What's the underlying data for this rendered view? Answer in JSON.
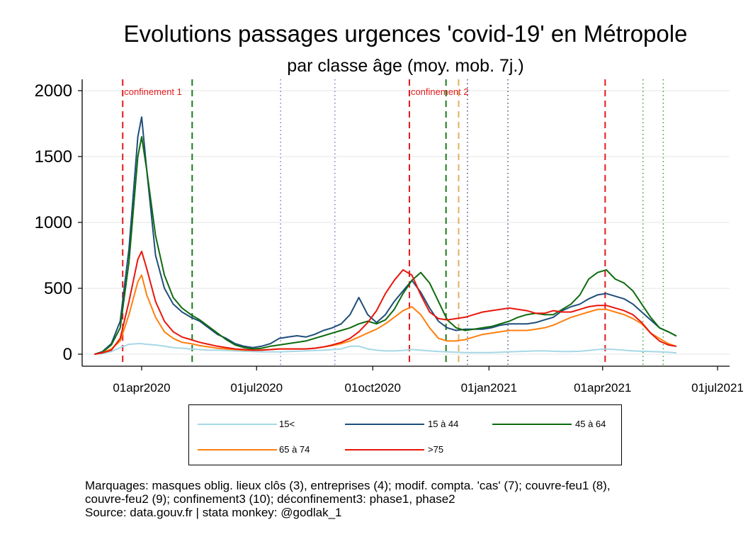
{
  "title": "Evolutions passages urgences 'covid-19' en Métropole",
  "subtitle": "par classe âge (moy. mob. 7j.)",
  "notes": [
    "Marquages: masques oblig. lieux clôs (3), entreprises (4); modif. compta. 'cas' (7); couvre-feu1 (8),",
    "couvre-feu2 (9); confinement3 (10); déconfinement3: phase1, phase2",
    "Source: data.gouv.fr | stata monkey: @godlak_1"
  ],
  "chart_data": {
    "type": "line",
    "title": "Evolutions passages urgences 'covid-19' en Métropole",
    "subtitle": "par classe âge (moy. mob. 7j.)",
    "xlabel": "",
    "ylabel": "",
    "xlim": [
      "2020-02-24",
      "2021-07-01"
    ],
    "ylim": [
      0,
      2000
    ],
    "y_ticks": [
      0,
      500,
      1000,
      1500,
      2000
    ],
    "x_ticks": [
      {
        "date": "2020-04-01",
        "label": "01apr2020"
      },
      {
        "date": "2020-07-01",
        "label": "01jul2020"
      },
      {
        "date": "2020-10-01",
        "label": "01oct2020"
      },
      {
        "date": "2021-01-01",
        "label": "01jan2021"
      },
      {
        "date": "2021-04-01",
        "label": "01apr2021"
      },
      {
        "date": "2021-07-01",
        "label": "01jul2021"
      }
    ],
    "grid": "horizontal",
    "legend_position": "bottom",
    "vlines": [
      {
        "date": "2020-03-17",
        "color": "#e31a1c",
        "style": "dashed",
        "label": "confinement 1"
      },
      {
        "date": "2020-05-11",
        "color": "#1a7a1a",
        "style": "dashed",
        "label": ""
      },
      {
        "date": "2020-07-20",
        "color": "#7070b8",
        "style": "dotted",
        "label": ""
      },
      {
        "date": "2020-09-01",
        "color": "#7070d0",
        "style": "dotted",
        "label": ""
      },
      {
        "date": "2020-10-30",
        "color": "#e31a1c",
        "style": "dashed",
        "label": "confinement 2"
      },
      {
        "date": "2020-11-28",
        "color": "#1a7a1a",
        "style": "dashed",
        "label": ""
      },
      {
        "date": "2020-12-08",
        "color": "#e0b060",
        "style": "dashed",
        "label": ""
      },
      {
        "date": "2020-12-15",
        "color": "#404070",
        "style": "dotted",
        "label": ""
      },
      {
        "date": "2021-01-16",
        "color": "#404070",
        "style": "dotted",
        "label": ""
      },
      {
        "date": "2021-04-03",
        "color": "#e31a1c",
        "style": "dashed",
        "label": ""
      },
      {
        "date": "2021-05-03",
        "color": "#2a9a2a",
        "style": "dotted",
        "label": ""
      },
      {
        "date": "2021-05-19",
        "color": "#2a9a2a",
        "style": "dotted",
        "label": ""
      }
    ],
    "x": [
      "2020-02-24",
      "2020-03-01",
      "2020-03-08",
      "2020-03-15",
      "2020-03-22",
      "2020-03-29",
      "2020-04-01",
      "2020-04-05",
      "2020-04-12",
      "2020-04-19",
      "2020-04-26",
      "2020-05-03",
      "2020-05-10",
      "2020-05-17",
      "2020-05-24",
      "2020-05-31",
      "2020-06-07",
      "2020-06-14",
      "2020-06-21",
      "2020-06-28",
      "2020-07-05",
      "2020-07-12",
      "2020-07-19",
      "2020-07-26",
      "2020-08-02",
      "2020-08-09",
      "2020-08-16",
      "2020-08-23",
      "2020-08-30",
      "2020-09-06",
      "2020-09-13",
      "2020-09-20",
      "2020-09-27",
      "2020-10-04",
      "2020-10-11",
      "2020-10-18",
      "2020-10-25",
      "2020-11-01",
      "2020-11-08",
      "2020-11-15",
      "2020-11-22",
      "2020-11-29",
      "2020-12-06",
      "2020-12-13",
      "2020-12-20",
      "2020-12-27",
      "2021-01-03",
      "2021-01-10",
      "2021-01-17",
      "2021-01-24",
      "2021-01-31",
      "2021-02-07",
      "2021-02-14",
      "2021-02-21",
      "2021-02-28",
      "2021-03-07",
      "2021-03-14",
      "2021-03-21",
      "2021-03-28",
      "2021-04-04",
      "2021-04-11",
      "2021-04-18",
      "2021-04-25",
      "2021-05-02",
      "2021-05-09",
      "2021-05-16",
      "2021-05-23",
      "2021-05-29"
    ],
    "series": [
      {
        "name": "15<",
        "color": "#a6d8e6",
        "values": [
          0,
          5,
          20,
          50,
          75,
          80,
          80,
          75,
          70,
          60,
          50,
          45,
          40,
          35,
          30,
          30,
          28,
          25,
          22,
          20,
          18,
          18,
          18,
          20,
          22,
          25,
          28,
          30,
          35,
          40,
          60,
          60,
          40,
          30,
          25,
          25,
          28,
          35,
          30,
          25,
          20,
          18,
          15,
          12,
          12,
          12,
          12,
          15,
          18,
          20,
          22,
          25,
          25,
          22,
          20,
          20,
          22,
          28,
          35,
          40,
          35,
          30,
          25,
          22,
          20,
          18,
          15,
          10
        ]
      },
      {
        "name": "15 à 44",
        "color": "#1f4e79",
        "values": [
          0,
          20,
          80,
          250,
          800,
          1650,
          1800,
          1400,
          750,
          500,
          380,
          320,
          280,
          250,
          200,
          150,
          120,
          80,
          60,
          50,
          60,
          80,
          120,
          130,
          140,
          130,
          150,
          180,
          200,
          230,
          300,
          430,
          300,
          240,
          300,
          400,
          480,
          560,
          470,
          350,
          250,
          200,
          180,
          190,
          190,
          190,
          200,
          220,
          230,
          230,
          230,
          240,
          260,
          280,
          330,
          360,
          380,
          420,
          450,
          460,
          440,
          420,
          380,
          320,
          260,
          200,
          170,
          140
        ]
      },
      {
        "name": "45 à 64",
        "color": "#0e6b0e",
        "values": [
          0,
          15,
          70,
          200,
          700,
          1500,
          1650,
          1400,
          900,
          600,
          430,
          350,
          300,
          260,
          210,
          160,
          110,
          70,
          50,
          40,
          45,
          60,
          70,
          80,
          90,
          100,
          120,
          140,
          160,
          180,
          200,
          230,
          250,
          230,
          260,
          340,
          460,
          560,
          620,
          540,
          400,
          260,
          200,
          180,
          190,
          200,
          210,
          230,
          250,
          280,
          300,
          310,
          300,
          300,
          340,
          380,
          450,
          570,
          620,
          640,
          570,
          540,
          480,
          380,
          280,
          200,
          170,
          140
        ]
      },
      {
        "name": "65 à 74",
        "color": "#ff7f0e",
        "values": [
          0,
          10,
          40,
          100,
          300,
          550,
          600,
          450,
          280,
          170,
          120,
          90,
          80,
          65,
          55,
          45,
          40,
          35,
          30,
          30,
          32,
          35,
          40,
          40,
          40,
          40,
          45,
          55,
          65,
          80,
          100,
          130,
          160,
          190,
          230,
          280,
          330,
          360,
          300,
          200,
          120,
          100,
          100,
          110,
          130,
          150,
          160,
          170,
          180,
          180,
          180,
          190,
          200,
          220,
          250,
          280,
          300,
          320,
          340,
          340,
          320,
          300,
          270,
          230,
          160,
          120,
          80,
          60
        ]
      },
      {
        "name": ">75",
        "color": "#e8160c",
        "values": [
          0,
          10,
          30,
          120,
          400,
          720,
          780,
          650,
          400,
          250,
          170,
          130,
          110,
          90,
          75,
          60,
          50,
          40,
          35,
          30,
          30,
          35,
          40,
          40,
          40,
          40,
          45,
          55,
          70,
          90,
          120,
          170,
          240,
          330,
          460,
          560,
          640,
          600,
          450,
          320,
          270,
          260,
          270,
          280,
          300,
          320,
          330,
          340,
          350,
          340,
          330,
          310,
          310,
          330,
          320,
          320,
          340,
          360,
          370,
          370,
          350,
          330,
          300,
          240,
          160,
          100,
          70,
          60
        ]
      }
    ]
  }
}
